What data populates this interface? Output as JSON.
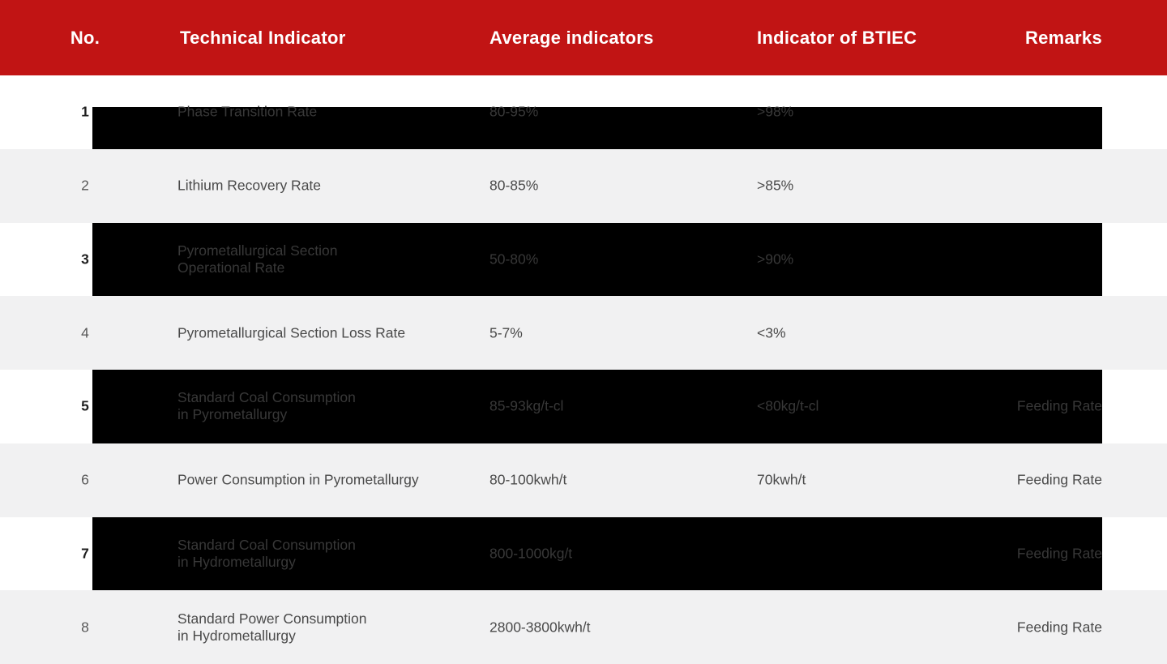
{
  "colors": {
    "header_bg": "#c11414",
    "header_text": "#ffffff",
    "row_alt_bg": "#f1f1f2",
    "row_bg": "#ffffff",
    "cover_overlay": "#000000",
    "text_on_cover": "#383838",
    "text_on_alt": "#4a4a4a"
  },
  "table": {
    "columns": {
      "no": "No.",
      "indicator": "Technical Indicator",
      "average": "Average indicators",
      "btiec": "Indicator of BTIEC",
      "remarks": "Remarks"
    },
    "rows": [
      {
        "no": "1",
        "indicator": "Phase Transition Rate",
        "average": "80-95%",
        "btiec": ">98%",
        "remarks": "",
        "cover": "partial"
      },
      {
        "no": "2",
        "indicator": "Lithium Recovery Rate",
        "average": "80-85%",
        "btiec": ">85%",
        "remarks": "",
        "cover": "none"
      },
      {
        "no": "3",
        "indicator": "Pyrometallurgical Section\nOperational Rate",
        "average": "50-80%",
        "btiec": ">90%",
        "remarks": "",
        "cover": "full"
      },
      {
        "no": "4",
        "indicator": "Pyrometallurgical Section Loss Rate",
        "average": "5-7%",
        "btiec": "<3%",
        "remarks": "",
        "cover": "none"
      },
      {
        "no": "5",
        "indicator": "Standard Coal Consumption\nin Pyrometallurgy",
        "average": "85-93kg/t-cl",
        "btiec": "<80kg/t-cl",
        "remarks": "Feeding Rate",
        "cover": "full"
      },
      {
        "no": "6",
        "indicator": "Power Consumption in Pyrometallurgy",
        "average": "80-100kwh/t",
        "btiec": "70kwh/t",
        "remarks": "Feeding Rate",
        "cover": "none"
      },
      {
        "no": "7",
        "indicator": "Standard Coal Consumption\nin Hydrometallurgy",
        "average": "800-1000kg/t",
        "btiec": "",
        "remarks": "Feeding Rate",
        "cover": "full"
      },
      {
        "no": "8",
        "indicator": "Standard Power Consumption\nin Hydrometallurgy",
        "average": "2800-3800kwh/t",
        "btiec": "",
        "remarks": "Feeding Rate",
        "cover": "none"
      }
    ]
  }
}
